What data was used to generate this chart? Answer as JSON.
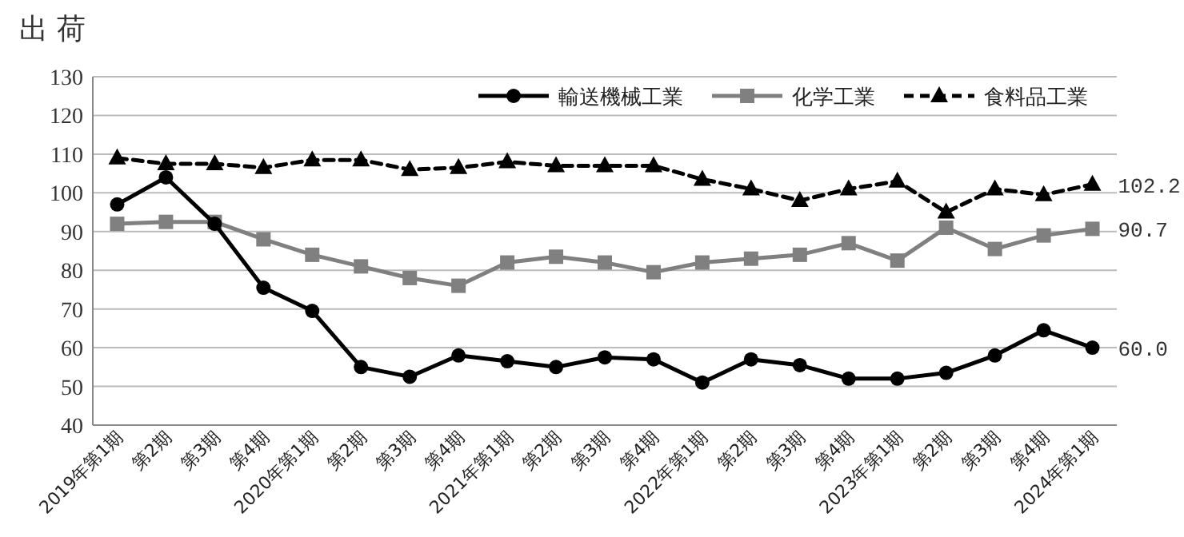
{
  "chart_data": {
    "type": "line",
    "title": "出 荷",
    "categories": [
      "2019年第1期",
      "第2期",
      "第3期",
      "第4期",
      "2020年第1期",
      "第2期",
      "第3期",
      "第4期",
      "2021年第1期",
      "第2期",
      "第3期",
      "第4期",
      "2022年第1期",
      "第2期",
      "第3期",
      "第4期",
      "2023年第1期",
      "第2期",
      "第3期",
      "第4期",
      "2024年第1期"
    ],
    "series": [
      {
        "name": "輸送機械工業",
        "color": "#000000",
        "marker": "circle",
        "line_style": "solid",
        "values": [
          97,
          104,
          92,
          75.5,
          69.5,
          55,
          52.5,
          58,
          56.5,
          55,
          57.5,
          57,
          51,
          57,
          55.5,
          52,
          52,
          53.5,
          58,
          64.5,
          60.0
        ],
        "value_labels": [
          null,
          null,
          null,
          null,
          null,
          null,
          null,
          null,
          null,
          null,
          null,
          null,
          null,
          null,
          null,
          null,
          null,
          null,
          null,
          null,
          "60.0"
        ]
      },
      {
        "name": "化学工業",
        "color": "#808080",
        "marker": "square",
        "line_style": "solid",
        "values": [
          92,
          92.5,
          92.5,
          88,
          84,
          81,
          78,
          76,
          82,
          83.5,
          82,
          79.5,
          82,
          83,
          84,
          87,
          82.5,
          91,
          85.5,
          89,
          90.7
        ],
        "value_labels": [
          null,
          null,
          null,
          null,
          null,
          null,
          null,
          null,
          null,
          null,
          null,
          null,
          null,
          null,
          null,
          null,
          null,
          null,
          null,
          null,
          "90.7"
        ]
      },
      {
        "name": "食料品工業",
        "color": "#000000",
        "marker": "triangle",
        "line_style": "dashed",
        "values": [
          109,
          107.5,
          107.5,
          106.5,
          108.5,
          108.5,
          106,
          106.5,
          108,
          107,
          107,
          107,
          103.5,
          101,
          98,
          101,
          103,
          95,
          101,
          99.5,
          102.2
        ],
        "value_labels": [
          null,
          null,
          null,
          null,
          null,
          null,
          null,
          null,
          null,
          null,
          null,
          null,
          null,
          null,
          null,
          null,
          null,
          null,
          null,
          null,
          "102.2"
        ]
      }
    ],
    "ylim": [
      40,
      130
    ],
    "yticks": [
      40,
      50,
      60,
      70,
      80,
      90,
      100,
      110,
      120,
      130
    ],
    "grid": "y",
    "legend": "top right"
  }
}
